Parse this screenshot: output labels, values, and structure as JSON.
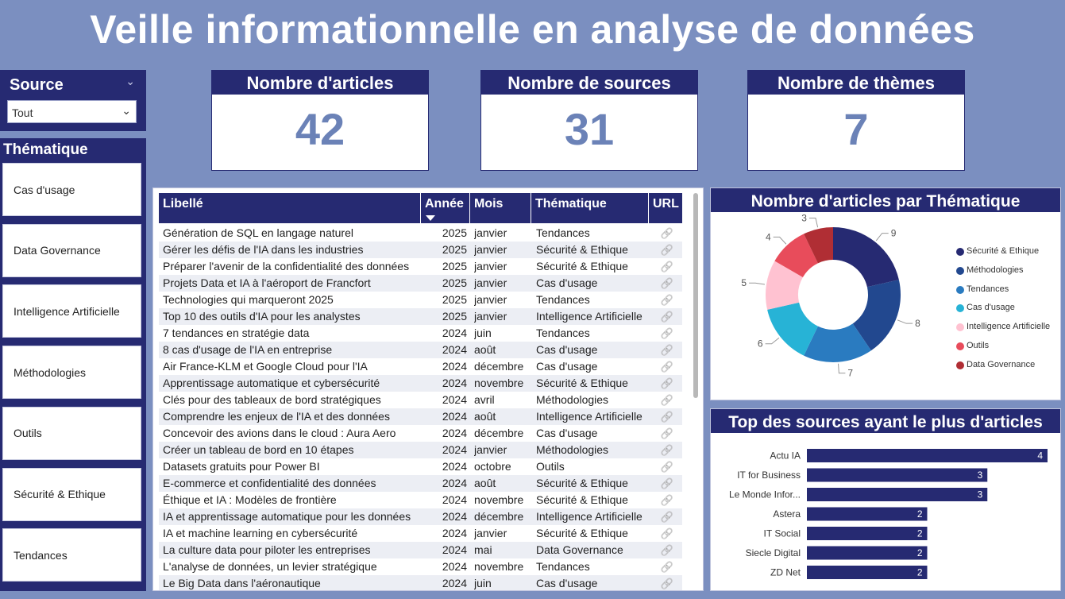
{
  "title": "Veille informationnelle en analyse de données",
  "source_slicer": {
    "label": "Source",
    "selected": "Tout"
  },
  "theme_slicer": {
    "label": "Thématique",
    "items": [
      "Cas d'usage",
      "Data Governance",
      "Intelligence Artificielle",
      "Méthodologies",
      "Outils",
      "Sécurité & Ethique",
      "Tendances"
    ]
  },
  "kpis": [
    {
      "label": "Nombre d'articles",
      "value": "42"
    },
    {
      "label": "Nombre de sources",
      "value": "31"
    },
    {
      "label": "Nombre de thèmes",
      "value": "7"
    }
  ],
  "table": {
    "columns": [
      "Libellé",
      "Année",
      "Mois",
      "Thématique",
      "URL"
    ],
    "rows": [
      [
        "Génération de SQL en langage naturel",
        "2025",
        "janvier",
        "Tendances"
      ],
      [
        "Gérer les défis de l'IA dans les industries",
        "2025",
        "janvier",
        "Sécurité & Ethique"
      ],
      [
        "Préparer l'avenir de la confidentialité des données",
        "2025",
        "janvier",
        "Sécurité & Ethique"
      ],
      [
        "Projets Data et IA à l'aéroport de Francfort",
        "2025",
        "janvier",
        "Cas d'usage"
      ],
      [
        "Technologies qui marqueront 2025",
        "2025",
        "janvier",
        "Tendances"
      ],
      [
        "Top 10 des outils d'IA pour les analystes",
        "2025",
        "janvier",
        "Intelligence Artificielle"
      ],
      [
        "7 tendances en stratégie data",
        "2024",
        "juin",
        "Tendances"
      ],
      [
        "8 cas d'usage de l'IA en entreprise",
        "2024",
        "août",
        "Cas d'usage"
      ],
      [
        "Air France-KLM et Google Cloud pour l'IA",
        "2024",
        "décembre",
        "Cas d'usage"
      ],
      [
        "Apprentissage automatique et cybersécurité",
        "2024",
        "novembre",
        "Sécurité & Ethique"
      ],
      [
        "Clés pour des tableaux de bord stratégiques",
        "2024",
        "avril",
        "Méthodologies"
      ],
      [
        "Comprendre les enjeux de l'IA et des données",
        "2024",
        "août",
        "Intelligence Artificielle"
      ],
      [
        "Concevoir des avions dans le cloud : Aura Aero",
        "2024",
        "décembre",
        "Cas d'usage"
      ],
      [
        "Créer un tableau de bord en 10 étapes",
        "2024",
        "janvier",
        "Méthodologies"
      ],
      [
        "Datasets gratuits pour Power BI",
        "2024",
        "octobre",
        "Outils"
      ],
      [
        "E-commerce et confidentialité des données",
        "2024",
        "août",
        "Sécurité & Ethique"
      ],
      [
        "Éthique et IA : Modèles de frontière",
        "2024",
        "novembre",
        "Sécurité & Ethique"
      ],
      [
        "IA et apprentissage automatique pour les données",
        "2024",
        "décembre",
        "Intelligence Artificielle"
      ],
      [
        "IA et machine learning en cybersécurité",
        "2024",
        "janvier",
        "Sécurité & Ethique"
      ],
      [
        "La culture data pour piloter les entreprises",
        "2024",
        "mai",
        "Data Governance"
      ],
      [
        "L'analyse de données, un levier stratégique",
        "2024",
        "novembre",
        "Tendances"
      ],
      [
        "Le Big Data dans l'aéronautique",
        "2024",
        "juin",
        "Cas d'usage"
      ]
    ]
  },
  "chart_data": [
    {
      "type": "pie",
      "title": "Nombre d'articles par Thématique",
      "categories": [
        "Sécurité & Ethique",
        "Méthodologies",
        "Tendances",
        "Cas d'usage",
        "Intelligence Artificielle",
        "Outils",
        "Data Governance"
      ],
      "values": [
        9,
        8,
        7,
        6,
        5,
        4,
        3
      ],
      "colors": [
        "#262a72",
        "#22488f",
        "#2a7bc0",
        "#27b3d6",
        "#ffc2d1",
        "#e84c5b",
        "#b02e34"
      ],
      "legend": "right"
    },
    {
      "type": "bar",
      "title": "Top des sources ayant le plus d'articles",
      "categories": [
        "Actu IA",
        "IT for Business",
        "Le Monde Infor...",
        "Astera",
        "IT Social",
        "Siecle Digital",
        "ZD Net"
      ],
      "values": [
        4,
        3,
        3,
        2,
        2,
        2,
        2
      ],
      "color": "#262a72",
      "xlim": [
        0,
        4
      ]
    }
  ]
}
